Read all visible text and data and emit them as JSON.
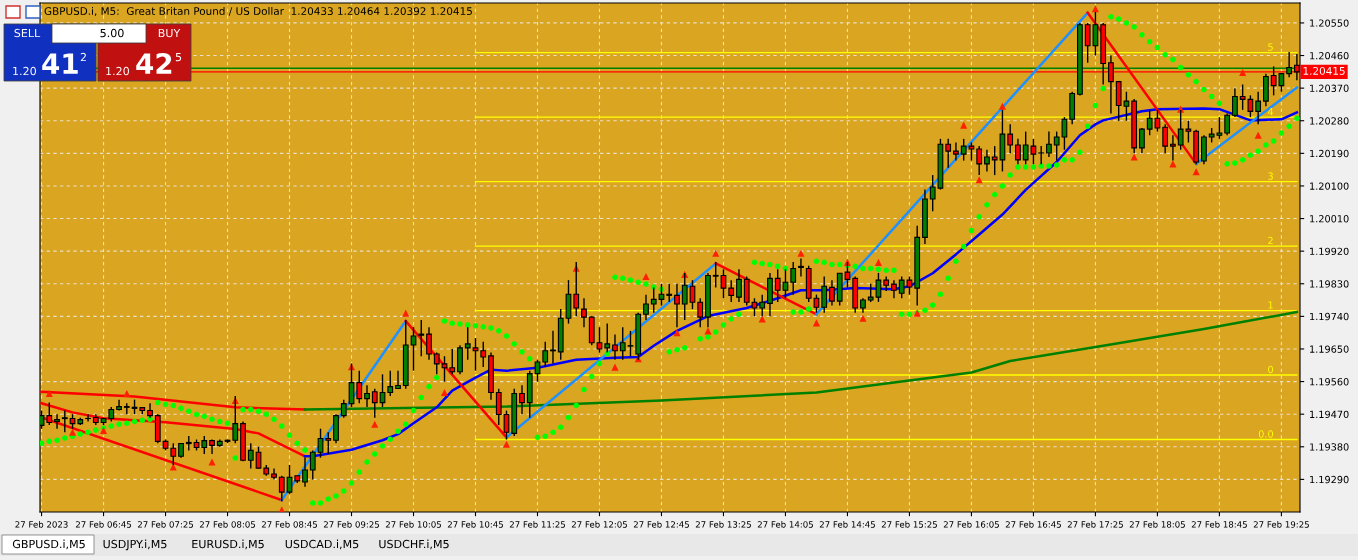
{
  "chart_data": {
    "type": "candlestick",
    "title": "GBPUSD.i, M5:  Great Britan Pound / US Dollar  1.20433 1.20464 1.20392 1.20415",
    "x": [
      "2023-02-27T06:05",
      "2023-02-27T06:10",
      "2023-02-27T06:15",
      "2023-02-27T06:20",
      "2023-02-27T06:25",
      "2023-02-27T06:30",
      "2023-02-27T06:35",
      "2023-02-27T06:40",
      "2023-02-27T06:45",
      "2023-02-27T06:50",
      "2023-02-27T06:55",
      "2023-02-27T07:00",
      "2023-02-27T07:05",
      "2023-02-27T07:10",
      "2023-02-27T07:15",
      "2023-02-27T07:20",
      "2023-02-27T07:25",
      "2023-02-27T07:30",
      "2023-02-27T07:35",
      "2023-02-27T07:40",
      "2023-02-27T07:45",
      "2023-02-27T07:50",
      "2023-02-27T07:55",
      "2023-02-27T08:00",
      "2023-02-27T08:05",
      "2023-02-27T08:10",
      "2023-02-27T08:15",
      "2023-02-27T08:20",
      "2023-02-27T08:25",
      "2023-02-27T08:30",
      "2023-02-27T08:35",
      "2023-02-27T08:40",
      "2023-02-27T08:45",
      "2023-02-27T08:50",
      "2023-02-27T08:55",
      "2023-02-27T09:00",
      "2023-02-27T09:05",
      "2023-02-27T09:10",
      "2023-02-27T09:15",
      "2023-02-27T09:20",
      "2023-02-27T09:25",
      "2023-02-27T09:30",
      "2023-02-27T09:35",
      "2023-02-27T09:40",
      "2023-02-27T09:45",
      "2023-02-27T09:50",
      "2023-02-27T09:55",
      "2023-02-27T10:00",
      "2023-02-27T10:05",
      "2023-02-27T10:10",
      "2023-02-27T10:15",
      "2023-02-27T10:20",
      "2023-02-27T10:25",
      "2023-02-27T10:30",
      "2023-02-27T10:35",
      "2023-02-27T10:40",
      "2023-02-27T10:45",
      "2023-02-27T10:50",
      "2023-02-27T10:55",
      "2023-02-27T11:00",
      "2023-02-27T11:05",
      "2023-02-27T11:10",
      "2023-02-27T11:15",
      "2023-02-27T11:20",
      "2023-02-27T11:25",
      "2023-02-27T11:30",
      "2023-02-27T11:35",
      "2023-02-27T11:40",
      "2023-02-27T11:45",
      "2023-02-27T11:50",
      "2023-02-27T11:55",
      "2023-02-27T12:00",
      "2023-02-27T12:05",
      "2023-02-27T12:10",
      "2023-02-27T12:15",
      "2023-02-27T12:20",
      "2023-02-27T12:25",
      "2023-02-27T12:30",
      "2023-02-27T12:35",
      "2023-02-27T12:40",
      "2023-02-27T12:45",
      "2023-02-27T12:50",
      "2023-02-27T12:55",
      "2023-02-27T13:00",
      "2023-02-27T13:05",
      "2023-02-27T13:10",
      "2023-02-27T13:15",
      "2023-02-27T13:20",
      "2023-02-27T13:25",
      "2023-02-27T13:30",
      "2023-02-27T13:35",
      "2023-02-27T13:40",
      "2023-02-27T13:45",
      "2023-02-27T13:50",
      "2023-02-27T13:55",
      "2023-02-27T14:00",
      "2023-02-27T14:05",
      "2023-02-27T14:10",
      "2023-02-27T14:15",
      "2023-02-27T14:20",
      "2023-02-27T14:25",
      "2023-02-27T14:30",
      "2023-02-27T14:35",
      "2023-02-27T14:40",
      "2023-02-27T14:45",
      "2023-02-27T14:50",
      "2023-02-27T14:55",
      "2023-02-27T15:00",
      "2023-02-27T15:05",
      "2023-02-27T15:10",
      "2023-02-27T15:15",
      "2023-02-27T15:20",
      "2023-02-27T15:25",
      "2023-02-27T15:30",
      "2023-02-27T15:35",
      "2023-02-27T15:40",
      "2023-02-27T15:45",
      "2023-02-27T15:50",
      "2023-02-27T15:55",
      "2023-02-27T16:00",
      "2023-02-27T16:05",
      "2023-02-27T16:10",
      "2023-02-27T16:15",
      "2023-02-27T16:20",
      "2023-02-27T16:25",
      "2023-02-27T16:30",
      "2023-02-27T16:35",
      "2023-02-27T16:40",
      "2023-02-27T16:45",
      "2023-02-27T16:50",
      "2023-02-27T16:55",
      "2023-02-27T17:00",
      "2023-02-27T17:05",
      "2023-02-27T17:10",
      "2023-02-27T17:15",
      "2023-02-27T17:20",
      "2023-02-27T17:25",
      "2023-02-27T17:30",
      "2023-02-27T17:35",
      "2023-02-27T17:40",
      "2023-02-27T17:45",
      "2023-02-27T17:50",
      "2023-02-27T17:55",
      "2023-02-27T18:00",
      "2023-02-27T18:05",
      "2023-02-27T18:10",
      "2023-02-27T18:15",
      "2023-02-27T18:20",
      "2023-02-27T18:25",
      "2023-02-27T18:30",
      "2023-02-27T18:35",
      "2023-02-27T18:40",
      "2023-02-27T18:45",
      "2023-02-27T18:50",
      "2023-02-27T18:55",
      "2023-02-27T19:00",
      "2023-02-27T19:05",
      "2023-02-27T19:10",
      "2023-02-27T19:15",
      "2023-02-27T19:20",
      "2023-02-27T19:25",
      "2023-02-27T19:30",
      "2023-02-27T19:35"
    ],
    "ohlc": [
      [
        1.19439,
        1.1948,
        1.1943,
        1.19466
      ],
      [
        1.19466,
        1.19502,
        1.1944,
        1.19447
      ],
      [
        1.1945,
        1.1947,
        1.1943,
        1.19455
      ],
      [
        1.19458,
        1.1948,
        1.1942,
        1.1946
      ],
      [
        1.19458,
        1.1947,
        1.1943,
        1.19444
      ],
      [
        1.19444,
        1.1946,
        1.1944,
        1.19455
      ],
      [
        1.19458,
        1.1947,
        1.1945,
        1.19458
      ],
      [
        1.19461,
        1.1947,
        1.1944,
        1.19447
      ],
      [
        1.19447,
        1.1946,
        1.1944,
        1.19458
      ],
      [
        1.19458,
        1.1949,
        1.1945,
        1.19483
      ],
      [
        1.19483,
        1.1951,
        1.1948,
        1.19491
      ],
      [
        1.19491,
        1.195,
        1.1947,
        1.19489
      ],
      [
        1.19489,
        1.1951,
        1.1947,
        1.19486
      ],
      [
        1.19488,
        1.1949,
        1.1947,
        1.1948
      ],
      [
        1.1948,
        1.195,
        1.1946,
        1.19466
      ],
      [
        1.19466,
        1.1947,
        1.1939,
        1.19395
      ],
      [
        1.19395,
        1.194,
        1.1937,
        1.19376
      ],
      [
        1.19376,
        1.1939,
        1.1933,
        1.19354
      ],
      [
        1.19354,
        1.1939,
        1.1935,
        1.19389
      ],
      [
        1.19389,
        1.1941,
        1.1937,
        1.19392
      ],
      [
        1.19392,
        1.194,
        1.1937,
        1.19378
      ],
      [
        1.19378,
        1.1941,
        1.1936,
        1.19397
      ],
      [
        1.19397,
        1.194,
        1.1936,
        1.19384
      ],
      [
        1.19384,
        1.194,
        1.1938,
        1.19395
      ],
      [
        1.19395,
        1.194,
        1.1939,
        1.19398
      ],
      [
        1.19398,
        1.1952,
        1.1939,
        1.19444
      ],
      [
        1.19444,
        1.1945,
        1.1934,
        1.19343
      ],
      [
        1.19343,
        1.1939,
        1.1932,
        1.1937
      ],
      [
        1.19365,
        1.1938,
        1.1932,
        1.19321
      ],
      [
        1.19321,
        1.1933,
        1.193,
        1.19305
      ],
      [
        1.19305,
        1.1932,
        1.1929,
        1.19296
      ],
      [
        1.19296,
        1.193,
        1.1923,
        1.19255
      ],
      [
        1.19255,
        1.1933,
        1.1925,
        1.19296
      ],
      [
        1.193,
        1.193,
        1.1928,
        1.19286
      ],
      [
        1.19283,
        1.1935,
        1.1927,
        1.19316
      ],
      [
        1.19316,
        1.1937,
        1.1929,
        1.19365
      ],
      [
        1.19365,
        1.1943,
        1.1935,
        1.19403
      ],
      [
        1.19403,
        1.1942,
        1.1936,
        1.19398
      ],
      [
        1.19398,
        1.1947,
        1.1939,
        1.19466
      ],
      [
        1.19466,
        1.1951,
        1.1946,
        1.19499
      ],
      [
        1.19499,
        1.1961,
        1.1949,
        1.19557
      ],
      [
        1.19557,
        1.1959,
        1.195,
        1.19513
      ],
      [
        1.19513,
        1.1955,
        1.1949,
        1.19527
      ],
      [
        1.19532,
        1.1954,
        1.1946,
        1.19502
      ],
      [
        1.19502,
        1.1958,
        1.1949,
        1.1953
      ],
      [
        1.1953,
        1.1959,
        1.1952,
        1.19546
      ],
      [
        1.19541,
        1.1959,
        1.1954,
        1.19549
      ],
      [
        1.19549,
        1.1973,
        1.1954,
        1.19661
      ],
      [
        1.19661,
        1.1971,
        1.1959,
        1.19686
      ],
      [
        1.19688,
        1.1973,
        1.1963,
        1.19691
      ],
      [
        1.19691,
        1.1971,
        1.1962,
        1.19636
      ],
      [
        1.19636,
        1.1964,
        1.1958,
        1.19609
      ],
      [
        1.19609,
        1.1963,
        1.1956,
        1.19598
      ],
      [
        1.19598,
        1.1965,
        1.1958,
        1.19587
      ],
      [
        1.19587,
        1.1966,
        1.1958,
        1.19653
      ],
      [
        1.19653,
        1.1971,
        1.1962,
        1.19664
      ],
      [
        1.19653,
        1.1968,
        1.1959,
        1.19645
      ],
      [
        1.19645,
        1.1967,
        1.196,
        1.19628
      ],
      [
        1.19631,
        1.1964,
        1.1951,
        1.1953
      ],
      [
        1.1953,
        1.1954,
        1.1944,
        1.19469
      ],
      [
        1.19469,
        1.1948,
        1.194,
        1.1942
      ],
      [
        1.19417,
        1.1954,
        1.1941,
        1.19527
      ],
      [
        1.19527,
        1.1955,
        1.1947,
        1.19502
      ],
      [
        1.19502,
        1.1959,
        1.1946,
        1.19582
      ],
      [
        1.19582,
        1.1962,
        1.1956,
        1.19614
      ],
      [
        1.19614,
        1.1967,
        1.196,
        1.19645
      ],
      [
        1.19645,
        1.197,
        1.1961,
        1.19647
      ],
      [
        1.19642,
        1.1976,
        1.1962,
        1.19735
      ],
      [
        1.19735,
        1.1984,
        1.1972,
        1.19801
      ],
      [
        1.19801,
        1.1989,
        1.1974,
        1.19763
      ],
      [
        1.1976,
        1.1979,
        1.1971,
        1.19738
      ],
      [
        1.19738,
        1.1974,
        1.1966,
        1.19667
      ],
      [
        1.19667,
        1.1971,
        1.1964,
        1.1965
      ],
      [
        1.19653,
        1.1972,
        1.1964,
        1.19664
      ],
      [
        1.19661,
        1.1969,
        1.1962,
        1.19645
      ],
      [
        1.19645,
        1.1971,
        1.1962,
        1.19667
      ],
      [
        1.19658,
        1.197,
        1.1963,
        1.19659
      ],
      [
        1.19636,
        1.1975,
        1.1962,
        1.19746
      ],
      [
        1.19746,
        1.198,
        1.1973,
        1.19774
      ],
      [
        1.19774,
        1.1982,
        1.1975,
        1.19787
      ],
      [
        1.19787,
        1.1983,
        1.1977,
        1.19801
      ],
      [
        1.19798,
        1.1983,
        1.1978,
        1.19801
      ],
      [
        1.19798,
        1.1983,
        1.1971,
        1.19774
      ],
      [
        1.19774,
        1.1986,
        1.1973,
        1.19826
      ],
      [
        1.19823,
        1.1984,
        1.1976,
        1.19779
      ],
      [
        1.19779,
        1.1979,
        1.1971,
        1.19738
      ],
      [
        1.19738,
        1.1986,
        1.1971,
        1.19853
      ],
      [
        1.19853,
        1.1989,
        1.1982,
        1.19851
      ],
      [
        1.19853,
        1.1987,
        1.1979,
        1.19818
      ],
      [
        1.19818,
        1.1984,
        1.1978,
        1.19798
      ],
      [
        1.19793,
        1.1987,
        1.1978,
        1.19842
      ],
      [
        1.19842,
        1.1985,
        1.1977,
        1.19779
      ],
      [
        1.19779,
        1.1979,
        1.1974,
        1.19763
      ],
      [
        1.19763,
        1.198,
        1.1974,
        1.19779
      ],
      [
        1.19776,
        1.1986,
        1.1974,
        1.19845
      ],
      [
        1.19845,
        1.1987,
        1.1978,
        1.19812
      ],
      [
        1.19812,
        1.1987,
        1.1979,
        1.19834
      ],
      [
        1.19834,
        1.1989,
        1.198,
        1.19872
      ],
      [
        1.19875,
        1.199,
        1.1985,
        1.19878
      ],
      [
        1.19872,
        1.1988,
        1.1978,
        1.1979
      ],
      [
        1.1979,
        1.198,
        1.1975,
        1.19765
      ],
      [
        1.19765,
        1.1985,
        1.1975,
        1.19823
      ],
      [
        1.1982,
        1.1984,
        1.1977,
        1.19782
      ],
      [
        1.19782,
        1.1986,
        1.1977,
        1.19859
      ],
      [
        1.19862,
        1.1989,
        1.1982,
        1.19842
      ],
      [
        1.19845,
        1.1985,
        1.1975,
        1.19763
      ],
      [
        1.19763,
        1.1979,
        1.1975,
        1.19785
      ],
      [
        1.19785,
        1.1983,
        1.1978,
        1.19793
      ],
      [
        1.19793,
        1.1986,
        1.1978,
        1.1984
      ],
      [
        1.1984,
        1.1985,
        1.1981,
        1.19826
      ],
      [
        1.19829,
        1.1984,
        1.1979,
        1.19812
      ],
      [
        1.19804,
        1.1985,
        1.1979,
        1.1984
      ],
      [
        1.1984,
        1.1985,
        1.198,
        1.19821
      ],
      [
        1.19818,
        1.1999,
        1.1977,
        1.19958
      ],
      [
        1.19958,
        1.2009,
        1.1994,
        1.20064
      ],
      [
        1.20064,
        1.2013,
        1.2003,
        1.20097
      ],
      [
        1.20094,
        1.2023,
        1.2009,
        1.20215
      ],
      [
        1.20215,
        1.2023,
        1.2015,
        1.20196
      ],
      [
        1.20196,
        1.2022,
        1.2017,
        1.20188
      ],
      [
        1.20188,
        1.2023,
        1.2017,
        1.2021
      ],
      [
        1.2021,
        1.2022,
        1.2017,
        1.20202
      ],
      [
        1.20202,
        1.2021,
        1.2013,
        1.20161
      ],
      [
        1.20161,
        1.202,
        1.2014,
        1.2018
      ],
      [
        1.2018,
        1.2021,
        1.2013,
        1.20172
      ],
      [
        1.20172,
        1.2031,
        1.2014,
        1.20243
      ],
      [
        1.20243,
        1.2027,
        1.2019,
        1.20213
      ],
      [
        1.20213,
        1.2023,
        1.2016,
        1.20172
      ],
      [
        1.20172,
        1.2025,
        1.2016,
        1.20213
      ],
      [
        1.2021,
        1.2023,
        1.2016,
        1.20188
      ],
      [
        1.20191,
        1.2021,
        1.2016,
        1.20191
      ],
      [
        1.20191,
        1.2025,
        1.2018,
        1.20215
      ],
      [
        1.20213,
        1.2025,
        1.2017,
        1.20235
      ],
      [
        1.20235,
        1.2029,
        1.202,
        1.20284
      ],
      [
        1.20284,
        1.2036,
        1.2027,
        1.20355
      ],
      [
        1.20353,
        1.2055,
        1.2035,
        1.20545
      ],
      [
        1.20545,
        1.2055,
        1.2044,
        1.20487
      ],
      [
        1.20487,
        1.2058,
        1.2046,
        1.20545
      ],
      [
        1.20545,
        1.2055,
        1.2038,
        1.20438
      ],
      [
        1.2044,
        1.2046,
        1.203,
        1.20388
      ],
      [
        1.20388,
        1.2039,
        1.2028,
        1.20322
      ],
      [
        1.2032,
        1.2036,
        1.2028,
        1.20334
      ],
      [
        1.20334,
        1.2034,
        1.2019,
        1.20205
      ],
      [
        1.20205,
        1.2026,
        1.2019,
        1.20257
      ],
      [
        1.20257,
        1.2031,
        1.2024,
        1.20287
      ],
      [
        1.20287,
        1.2031,
        1.2025,
        1.2026
      ],
      [
        1.20262,
        1.2027,
        1.2019,
        1.2021
      ],
      [
        1.20215,
        1.2024,
        1.2017,
        1.2021
      ],
      [
        1.20213,
        1.2031,
        1.202,
        1.20257
      ],
      [
        1.20257,
        1.2028,
        1.2022,
        1.20251
      ],
      [
        1.20251,
        1.20255,
        1.2016,
        1.20166
      ],
      [
        1.20169,
        1.2024,
        1.2016,
        1.20235
      ],
      [
        1.20235,
        1.2026,
        1.2022,
        1.20243
      ],
      [
        1.2024,
        1.2029,
        1.2023,
        1.20246
      ],
      [
        1.20246,
        1.203,
        1.2024,
        1.20295
      ],
      [
        1.20295,
        1.2037,
        1.2029,
        1.20347
      ],
      [
        1.20347,
        1.2038,
        1.2031,
        1.20339
      ],
      [
        1.20339,
        1.2035,
        1.2029,
        1.20306
      ],
      [
        1.20306,
        1.2036,
        1.2027,
        1.20334
      ],
      [
        1.20334,
        1.2041,
        1.2032,
        1.20402
      ],
      [
        1.20405,
        1.2043,
        1.2035,
        1.20377
      ],
      [
        1.20377,
        1.2041,
        1.2036,
        1.2041
      ],
      [
        1.2041,
        1.2047,
        1.204,
        1.20427
      ],
      [
        1.20433,
        1.20464,
        1.20392,
        1.20415
      ]
    ],
    "colors": [
      "#008000",
      "#ff0000",
      "#008000",
      "#008000",
      "#ff0000",
      "#008000",
      "#008000",
      "#ff0000",
      "#008000",
      "#008000",
      "#008000",
      "#ff0000",
      "#ff0000",
      "#ff0000",
      "#ff0000",
      "#ff0000",
      "#ff0000",
      "#ff0000",
      "#008000",
      "#008000",
      "#ff0000",
      "#008000",
      "#ff0000",
      "#008000",
      "#008000",
      "#008000",
      "#ff0000",
      "#008000",
      "#ff0000",
      "#ff0000",
      "#ff0000",
      "#ff0000",
      "#008000",
      "#ff0000",
      "#008000",
      "#008000",
      "#008000",
      "#ff0000",
      "#008000",
      "#008000",
      "#008000",
      "#ff0000",
      "#008000",
      "#ff0000",
      "#008000",
      "#008000",
      "#008000",
      "#008000",
      "#008000",
      "#008000",
      "#ff0000",
      "#ff0000",
      "#ff0000",
      "#ff0000",
      "#008000",
      "#008000",
      "#ff0000",
      "#ff0000",
      "#ff0000",
      "#ff0000",
      "#ff0000",
      "#008000",
      "#ff0000",
      "#008000",
      "#008000",
      "#008000",
      "#008000",
      "#008000",
      "#008000",
      "#ff0000",
      "#ff0000",
      "#ff0000",
      "#ff0000",
      "#008000",
      "#ff0000",
      "#008000",
      "#008000",
      "#008000",
      "#008000",
      "#008000",
      "#008000",
      "#008000",
      "#ff0000",
      "#008000",
      "#ff0000",
      "#ff0000",
      "#008000",
      "#ff0000",
      "#ff0000",
      "#ff0000",
      "#008000",
      "#ff0000",
      "#ff0000",
      "#008000",
      "#008000",
      "#ff0000",
      "#008000",
      "#008000",
      "#008000",
      "#ff0000",
      "#ff0000",
      "#008000",
      "#ff0000",
      "#008000",
      "#ff0000",
      "#ff0000",
      "#008000",
      "#008000",
      "#008000",
      "#ff0000",
      "#ff0000",
      "#008000",
      "#ff0000",
      "#008000",
      "#008000",
      "#008000",
      "#008000",
      "#ff0000",
      "#ff0000",
      "#008000",
      "#ff0000",
      "#ff0000",
      "#008000",
      "#ff0000",
      "#008000",
      "#ff0000",
      "#ff0000",
      "#008000",
      "#ff0000",
      "#008000",
      "#008000",
      "#008000",
      "#008000",
      "#008000",
      "#008000",
      "#ff0000",
      "#008000",
      "#ff0000",
      "#ff0000",
      "#ff0000",
      "#008000",
      "#ff0000",
      "#008000",
      "#008000",
      "#ff0000",
      "#ff0000",
      "#ff0000",
      "#008000",
      "#ff0000",
      "#ff0000",
      "#008000",
      "#008000",
      "#008000",
      "#008000",
      "#008000",
      "#ff0000",
      "#ff0000",
      "#008000",
      "#008000",
      "#ff0000",
      "#008000",
      "#008000",
      "#ff0000"
    ],
    "series": [
      {
        "type": "line",
        "color": "#ff0000",
        "x": [
          "2023-02-27T06:05",
          "2023-02-27T07:05",
          "2023-02-27T08:10",
          "2023-02-27T08:55"
        ],
        "values": [
          1.19532,
          1.19519,
          1.19489,
          1.19483
        ]
      },
      {
        "type": "line",
        "color": "#008000",
        "x": [
          "2023-02-27T08:55",
          "2023-02-27T11:05",
          "2023-02-27T12:45",
          "2023-02-27T14:25",
          "2023-02-27T15:25",
          "2023-02-27T16:05",
          "2023-02-27T16:30",
          "2023-02-27T17:30",
          "2023-02-27T18:35",
          "2023-02-27T19:35"
        ],
        "values": [
          1.19483,
          1.19491,
          1.19508,
          1.1953,
          1.19563,
          1.19585,
          1.19617,
          1.19659,
          1.19705,
          1.19752
        ]
      },
      {
        "type": "line",
        "color": "#ff0000",
        "x": [
          "2023-02-27T06:05",
          "2023-02-27T06:25",
          "2023-02-27T06:45",
          "2023-02-27T07:25",
          "2023-02-27T08:10",
          "2023-02-27T08:25",
          "2023-02-27T08:40",
          "2023-02-27T08:55"
        ],
        "values": [
          1.195,
          1.19475,
          1.19459,
          1.19448,
          1.19429,
          1.19417,
          1.19385,
          1.19354
        ]
      },
      {
        "type": "line",
        "color": "#0000ff",
        "x": [
          "2023-02-27T08:55",
          "2023-02-27T09:00",
          "2023-02-27T09:25",
          "2023-02-27T09:45",
          "2023-02-27T09:55",
          "2023-02-27T10:05",
          "2023-02-27T10:20",
          "2023-02-27T10:30",
          "2023-02-27T10:45",
          "2023-02-27T10:55",
          "2023-02-27T11:05",
          "2023-02-27T11:25",
          "2023-02-27T11:50",
          "2023-02-27T12:15",
          "2023-02-27T12:30",
          "2023-02-27T12:40",
          "2023-02-27T12:55",
          "2023-02-27T13:15",
          "2023-02-27T13:40",
          "2023-02-27T14:00",
          "2023-02-27T14:15",
          "2023-02-27T14:30",
          "2023-02-27T14:50",
          "2023-02-27T15:15",
          "2023-02-27T15:25",
          "2023-02-27T15:40",
          "2023-02-27T15:55",
          "2023-02-27T16:10",
          "2023-02-27T16:25",
          "2023-02-27T16:40",
          "2023-02-27T17:00",
          "2023-02-27T17:15",
          "2023-02-27T17:25",
          "2023-02-27T17:30",
          "2023-02-27T17:55",
          "2023-02-27T18:05",
          "2023-02-27T18:35",
          "2023-02-27T18:45",
          "2023-02-27T19:05",
          "2023-02-27T19:25",
          "2023-02-27T19:35"
        ],
        "values": [
          1.19354,
          1.19354,
          1.19372,
          1.19398,
          1.19415,
          1.19445,
          1.19489,
          1.19535,
          1.19571,
          1.19593,
          1.1959,
          1.19598,
          1.1962,
          1.19626,
          1.19628,
          1.19659,
          1.197,
          1.19741,
          1.19763,
          1.1979,
          1.19812,
          1.19812,
          1.19818,
          1.19815,
          1.19823,
          1.19859,
          1.19911,
          1.19966,
          1.20021,
          1.20089,
          1.20166,
          1.2024,
          1.2027,
          1.20281,
          1.20306,
          1.20312,
          1.20314,
          1.20312,
          1.20281,
          1.20284,
          1.20303
        ]
      },
      {
        "type": "scatter",
        "color": "#00ff00",
        "marker": "circle",
        "values": [
          1.1939,
          1.19395,
          1.19398,
          1.19404,
          1.19409,
          1.19415,
          1.1942,
          1.19426,
          1.19431,
          1.19437,
          1.19442,
          1.19445,
          1.1945,
          1.19453,
          1.19456,
          1.19502,
          1.19497,
          1.19494,
          1.19486,
          1.19478,
          1.19469,
          1.19464,
          1.19456,
          1.1945,
          1.19445,
          1.19349,
          1.19483,
          1.19483,
          1.19478,
          1.1947,
          1.19456,
          1.19437,
          1.19412,
          1.1939,
          1.19371,
          1.19225,
          1.19225,
          1.19236,
          1.19244,
          1.19258,
          1.1928,
          1.1931,
          1.19338,
          1.1936,
          1.19382,
          1.19401,
          1.19423,
          1.19442,
          1.1948,
          1.19516,
          1.19546,
          1.19571,
          1.19727,
          1.19721,
          1.19719,
          1.19716,
          1.19714,
          1.19711,
          1.19708,
          1.197,
          1.19686,
          1.19664,
          1.19642,
          1.19623,
          1.19406,
          1.19409,
          1.1942,
          1.19434,
          1.19461,
          1.19494,
          1.19538,
          1.19574,
          1.1961,
          1.19637,
          1.19848,
          1.19845,
          1.1984,
          1.19834,
          1.19829,
          1.19821,
          1.19815,
          1.19642,
          1.19648,
          1.19653,
          null,
          1.19678,
          1.19683,
          1.19697,
          1.19716,
          1.19733,
          1.19746,
          null,
          1.19889,
          1.19886,
          1.19883,
          1.19878,
          1.19872,
          1.19752,
          1.19752,
          1.1976,
          1.19892,
          1.19889,
          1.19883,
          1.19883,
          1.1988,
          1.19878,
          1.19872,
          1.19872,
          1.1987,
          1.19867,
          1.19867,
          1.19746,
          1.19746,
          1.19749,
          1.19757,
          1.19771,
          1.19801,
          1.19845,
          1.19892,
          1.19933,
          1.19977,
          1.20015,
          1.20048,
          1.20076,
          1.201,
          1.2013,
          1.20152,
          1.20152,
          1.20152,
          1.20155,
          1.20155,
          1.20158,
          1.20172,
          1.20172,
          1.20193,
          1.20265,
          1.20322,
          1.20369,
          1.20567,
          1.20561,
          1.2055,
          1.20539,
          1.20517,
          1.20498,
          1.20482,
          1.20462,
          1.20449,
          1.20427,
          1.20407,
          1.20388,
          1.20366,
          1.20347,
          1.20328,
          1.20161,
          1.20163,
          1.20172,
          1.20185,
          1.20196,
          1.20213,
          1.20224,
          1.20246,
          1.20265,
          1.20287
        ]
      },
      {
        "type": "line",
        "color": "#ff0000",
        "x": [
          "2023-02-27T06:05",
          "2023-02-27T08:40"
        ],
        "values": [
          1.19461,
          1.19233
        ]
      },
      {
        "type": "line",
        "color": "#1e90ff",
        "x": [
          "2023-02-27T08:40",
          "2023-02-27T10:00"
        ],
        "values": [
          1.19233,
          1.19727
        ]
      },
      {
        "type": "line",
        "color": "#ff0000",
        "x": [
          "2023-02-27T10:00",
          "2023-02-27T11:05"
        ],
        "values": [
          1.19727,
          1.19406
        ]
      },
      {
        "type": "line",
        "color": "#1e90ff",
        "x": [
          "2023-02-27T11:05",
          "2023-02-27T13:20"
        ],
        "values": [
          1.19406,
          1.19886
        ]
      },
      {
        "type": "line",
        "color": "#ff0000",
        "x": [
          "2023-02-27T13:20",
          "2023-02-27T14:25"
        ],
        "values": [
          1.19886,
          1.19746
        ]
      },
      {
        "type": "line",
        "color": "#1e90ff",
        "x": [
          "2023-02-27T14:25",
          "2023-02-27T17:20"
        ],
        "values": [
          1.19746,
          1.20578
        ]
      },
      {
        "type": "line",
        "color": "#ff0000",
        "x": [
          "2023-02-27T17:20",
          "2023-02-27T18:30"
        ],
        "values": [
          1.20578,
          1.20161
        ]
      },
      {
        "type": "line",
        "color": "#1e90ff",
        "x": [
          "2023-02-27T18:30",
          "2023-02-27T19:35"
        ],
        "values": [
          1.20161,
          1.20372
        ]
      },
      {
        "type": "line",
        "color": "#ffff00",
        "name": "5",
        "x": [
          "2023-02-27T10:45",
          "2023-02-27T19:35"
        ],
        "values": [
          1.20468,
          1.20468
        ]
      },
      {
        "type": "line",
        "color": "#ffff00",
        "name": "4",
        "x": [
          "2023-02-27T10:45",
          "2023-02-27T19:35"
        ],
        "values": [
          1.2029,
          1.2029
        ]
      },
      {
        "type": "line",
        "color": "#ffff00",
        "name": "3",
        "x": [
          "2023-02-27T10:45",
          "2023-02-27T19:35"
        ],
        "values": [
          1.20112,
          1.20112
        ]
      },
      {
        "type": "line",
        "color": "#ffff00",
        "name": "2",
        "x": [
          "2023-02-27T10:45",
          "2023-02-27T19:35"
        ],
        "values": [
          1.19934,
          1.19934
        ]
      },
      {
        "type": "line",
        "color": "#ffff00",
        "name": "1",
        "x": [
          "2023-02-27T10:45",
          "2023-02-27T19:35"
        ],
        "values": [
          1.19756,
          1.19756
        ]
      },
      {
        "type": "line",
        "color": "#ffff00",
        "name": "0",
        "x": [
          "2023-02-27T10:45",
          "2023-02-27T19:35"
        ],
        "values": [
          1.19578,
          1.19578
        ]
      },
      {
        "type": "line",
        "color": "#ffff00",
        "name": "0.0",
        "x": [
          "2023-02-27T10:45",
          "2023-02-27T19:35"
        ],
        "values": [
          1.194,
          1.194
        ]
      },
      {
        "type": "scatter",
        "color": "#ff2000",
        "marker": "triangle",
        "x": [
          "2023-02-27T06:10",
          "2023-02-27T07:00",
          "2023-02-27T08:10",
          "2023-02-27T09:25",
          "2023-02-27T10:00",
          "2023-02-27T11:50",
          "2023-02-27T12:35",
          "2023-02-27T13:00",
          "2023-02-27T13:20",
          "2023-02-27T14:15",
          "2023-02-27T14:45",
          "2023-02-27T15:05",
          "2023-02-27T16:00",
          "2023-02-27T16:25",
          "2023-02-27T17:25",
          "2023-02-27T18:20",
          "2023-02-27T19:00"
        ],
        "values": [
          1.19527,
          1.19527,
          1.19508,
          1.19601,
          1.19749,
          1.19873,
          1.1985,
          1.19856,
          1.19914,
          1.19914,
          1.19889,
          1.19889,
          1.20268,
          1.2032,
          1.20589,
          1.20312,
          1.20413
        ]
      },
      {
        "type": "scatter",
        "color": "#ff2000",
        "marker": "triangle",
        "x": [
          "2023-02-27T06:25",
          "2023-02-27T06:45",
          "2023-02-27T07:30",
          "2023-02-27T07:55",
          "2023-02-27T08:40",
          "2023-02-27T09:40",
          "2023-02-27T10:25",
          "2023-02-27T11:05",
          "2023-02-27T12:15",
          "2023-02-27T12:30",
          "2023-02-27T12:55",
          "2023-02-27T13:15",
          "2023-02-27T13:50",
          "2023-02-27T14:25",
          "2023-02-27T14:55",
          "2023-02-27T15:30",
          "2023-02-27T16:10",
          "2023-02-27T17:50",
          "2023-02-27T18:15",
          "2023-02-27T18:30",
          "2023-02-27T19:10"
        ],
        "values": [
          1.1942,
          1.19425,
          1.19324,
          1.19338,
          1.19206,
          1.19442,
          1.1953,
          1.19387,
          1.196,
          1.19623,
          1.19695,
          1.197,
          1.19733,
          1.19722,
          1.19735,
          1.19749,
          1.20117,
          1.2018,
          1.20161,
          1.20139,
          1.2024
        ]
      }
    ],
    "ref_lines": [
      {
        "axis": "y",
        "value": 1.20425,
        "color": "#008000"
      },
      {
        "axis": "y",
        "value": 1.20415,
        "label": "1.20415",
        "color": "#ff0000"
      }
    ],
    "xlim": [
      "2023-02-27T06:04",
      "2023-02-27T19:37"
    ],
    "xticks": [
      {
        "value": "2023-02-27T06:05",
        "label": "27 Feb 2023"
      },
      {
        "value": "2023-02-27T06:45",
        "label": "27 Feb 06:45"
      },
      {
        "value": "2023-02-27T07:25",
        "label": "27 Feb 07:25"
      },
      {
        "value": "2023-02-27T08:05",
        "label": "27 Feb 08:05"
      },
      {
        "value": "2023-02-27T08:45",
        "label": "27 Feb 08:45"
      },
      {
        "value": "2023-02-27T09:25",
        "label": "27 Feb 09:25"
      },
      {
        "value": "2023-02-27T10:05",
        "label": "27 Feb 10:05"
      },
      {
        "value": "2023-02-27T10:45",
        "label": "27 Feb 10:45"
      },
      {
        "value": "2023-02-27T11:25",
        "label": "27 Feb 11:25"
      },
      {
        "value": "2023-02-27T12:05",
        "label": "27 Feb 12:05"
      },
      {
        "value": "2023-02-27T12:45",
        "label": "27 Feb 12:45"
      },
      {
        "value": "2023-02-27T13:25",
        "label": "27 Feb 13:25"
      },
      {
        "value": "2023-02-27T14:05",
        "label": "27 Feb 14:05"
      },
      {
        "value": "2023-02-27T14:45",
        "label": "27 Feb 14:45"
      },
      {
        "value": "2023-02-27T15:25",
        "label": "27 Feb 15:25"
      },
      {
        "value": "2023-02-27T16:05",
        "label": "27 Feb 16:05"
      },
      {
        "value": "2023-02-27T16:45",
        "label": "27 Feb 16:45"
      },
      {
        "value": "2023-02-27T17:25",
        "label": "27 Feb 17:25"
      },
      {
        "value": "2023-02-27T18:05",
        "label": "27 Feb 18:05"
      },
      {
        "value": "2023-02-27T18:45",
        "label": "27 Feb 18:45"
      },
      {
        "value": "2023-02-27T19:25",
        "label": "27 Feb 19:25"
      }
    ],
    "ylim": [
      1.192,
      1.20605
    ],
    "yticks": [
      {
        "value": 1.1929,
        "label": "1.19290"
      },
      {
        "value": 1.1938,
        "label": "1.19380"
      },
      {
        "value": 1.1947,
        "label": "1.19470"
      },
      {
        "value": 1.1956,
        "label": "1.19560"
      },
      {
        "value": 1.1965,
        "label": "1.19650"
      },
      {
        "value": 1.1974,
        "label": "1.19740"
      },
      {
        "value": 1.1983,
        "label": "1.19830"
      },
      {
        "value": 1.1992,
        "label": "1.19920"
      },
      {
        "value": 1.2001,
        "label": "1.20010"
      },
      {
        "value": 1.201,
        "label": "1.20100"
      },
      {
        "value": 1.2019,
        "label": "1.20190"
      },
      {
        "value": 1.2028,
        "label": "1.20280"
      },
      {
        "value": 1.2037,
        "label": "1.20370"
      },
      {
        "value": 1.2046,
        "label": "1.20460"
      },
      {
        "value": 1.2055,
        "label": "1.20550"
      }
    ],
    "grid": true,
    "annotations": [
      "SELL",
      "5.00",
      "BUY",
      "1.20",
      "41",
      "2",
      "1.20",
      "42",
      "5",
      "GBPUSD.i,M5",
      "USDJPY.i,M5",
      "EURUSD.i,M5",
      "USDCAD.i,M5",
      "USDCHF.i,M5"
    ]
  }
}
